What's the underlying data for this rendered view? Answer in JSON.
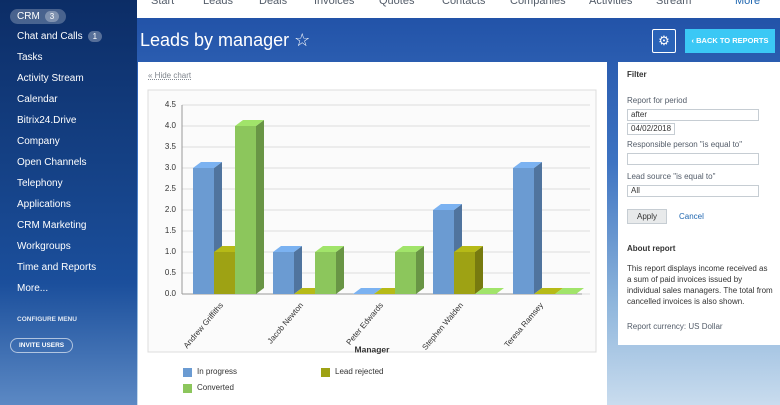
{
  "sidebar": {
    "badge_item": {
      "label": "CRM",
      "badge": "3"
    },
    "chat": {
      "label": "Chat and Calls",
      "badge": "1"
    },
    "items": [
      "Tasks",
      "Activity Stream",
      "Calendar",
      "Bitrix24.Drive",
      "Company",
      "Open Channels",
      "Telephony",
      "Applications",
      "CRM Marketing",
      "Workgroups",
      "Time and Reports",
      "More..."
    ],
    "configure": "CONFIGURE MENU",
    "invite": "INVITE USERS"
  },
  "tabs": [
    "Start",
    "Leads",
    "Deals",
    "Invoices",
    "Quotes",
    "Contacts",
    "Companies",
    "Activities",
    "Stream",
    "More"
  ],
  "header": {
    "title": "Leads by manager",
    "back": "BACK TO REPORTS"
  },
  "hide_chart": "« Hide chart",
  "filter": {
    "title": "Filter",
    "period_label": "Report for period",
    "period_value": "after",
    "date": "04/02/2018",
    "responsible_label": "Responsible person \"is equal to\"",
    "source_label": "Lead source \"is equal to\"",
    "source_value": "All",
    "apply": "Apply",
    "cancel": "Cancel",
    "about_title": "About report",
    "about_text": "This report displays income received as a sum of paid invoices issued by individual sales managers. The total from cancelled invoices is also shown.",
    "currency": "Report currency: US Dollar"
  },
  "chart_data": {
    "type": "bar3d",
    "xlabel": "Manager",
    "categories": [
      "Andrew Griffiths",
      "Jacob Newton",
      "Peter Edwards",
      "Stephen Walden",
      "Teresa Ramsey"
    ],
    "series": [
      {
        "name": "In progress",
        "color": "#6b9bd2",
        "values": [
          3,
          1,
          0,
          2,
          3
        ]
      },
      {
        "name": "Lead rejected",
        "color": "#9ea214",
        "values": [
          1,
          0,
          0,
          1,
          0
        ]
      },
      {
        "name": "Converted",
        "color": "#8cc65c",
        "values": [
          4,
          1,
          1,
          0,
          0
        ]
      }
    ],
    "ylim": [
      0,
      4.5
    ],
    "yticks": [
      {
        "value": 0,
        "label": "0.0"
      },
      {
        "value": 0.5,
        "label": "0.5"
      },
      {
        "value": 1,
        "label": "1.0"
      },
      {
        "value": 1.5,
        "label": "1.5"
      },
      {
        "value": 2,
        "label": "2.0"
      },
      {
        "value": 2.5,
        "label": "2.5"
      },
      {
        "value": 3,
        "label": "3.0"
      },
      {
        "value": 3.5,
        "label": "3.5"
      },
      {
        "value": 4,
        "label": "4.0"
      },
      {
        "value": 4.5,
        "label": "4.5"
      }
    ],
    "grid": true
  }
}
